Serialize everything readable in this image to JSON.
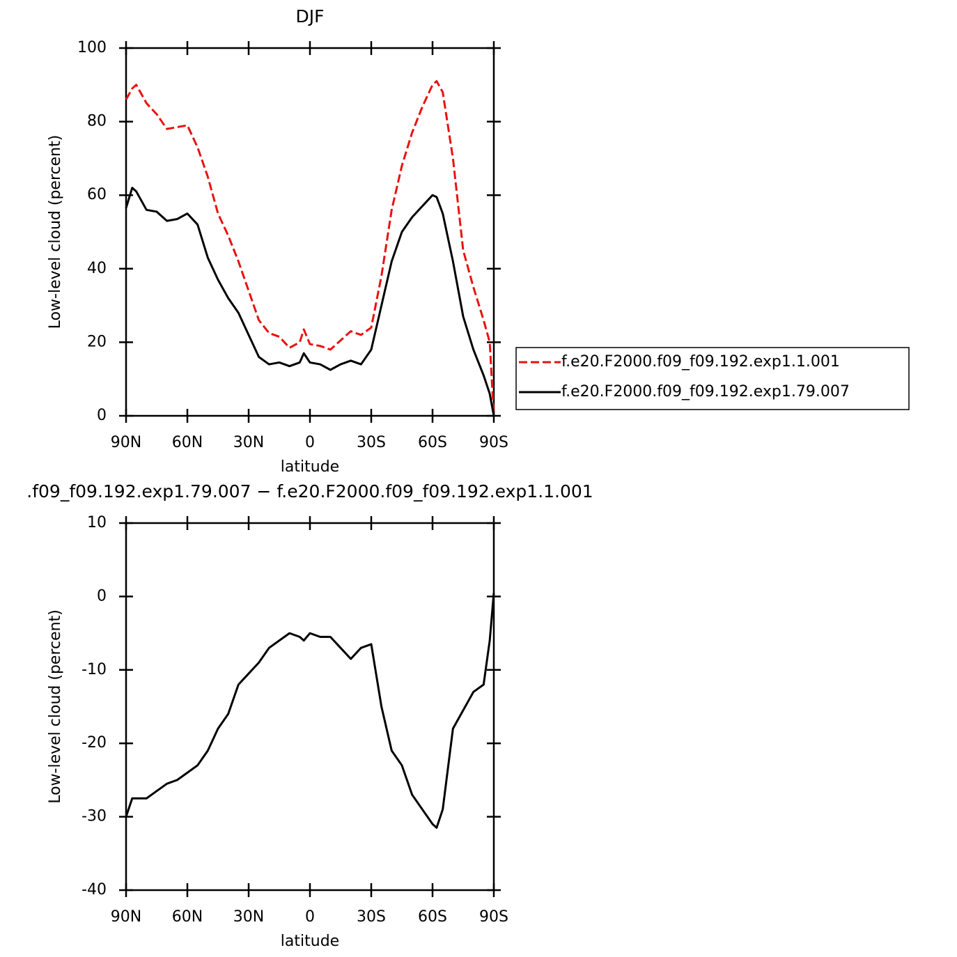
{
  "chart_data": [
    {
      "type": "line",
      "title": "DJF",
      "xlabel": "latitude",
      "ylabel": "Low-level cloud (percent)",
      "x": [
        90,
        87,
        85,
        80,
        75,
        70,
        65,
        60,
        55,
        50,
        45,
        40,
        35,
        30,
        25,
        20,
        15,
        10,
        5,
        3,
        0,
        -5,
        -10,
        -15,
        -20,
        -25,
        -30,
        -35,
        -40,
        -45,
        -50,
        -55,
        -60,
        -62,
        -65,
        -70,
        -75,
        -80,
        -85,
        -88,
        -90
      ],
      "series": [
        {
          "name": "f.e20.F2000.f09_f09.192.exp1.1.001",
          "color": "#e8110f",
          "line_style": "dashed",
          "values": [
            86,
            89,
            90,
            85,
            82,
            78,
            78.5,
            79,
            73,
            65,
            55,
            49,
            42,
            34,
            26,
            22.5,
            21.5,
            18.5,
            20,
            23.5,
            19.5,
            19,
            18,
            20.5,
            23,
            22,
            24,
            38,
            56,
            68,
            77,
            84,
            90,
            91,
            88,
            70,
            45,
            35,
            26,
            20,
            0
          ]
        },
        {
          "name": "f.e20.F2000.f09_f09.192.exp1.79.007",
          "color": "#000000",
          "line_style": "solid",
          "values": [
            56.5,
            62,
            61,
            56,
            55.5,
            53,
            53.5,
            55,
            52,
            43,
            37,
            32,
            28,
            22,
            16,
            14,
            14.5,
            13.5,
            14.5,
            17,
            14.5,
            14,
            12.5,
            14,
            15,
            14,
            18,
            30,
            42,
            50,
            54,
            57,
            60,
            59.5,
            55,
            42,
            27,
            18,
            11,
            6,
            0
          ]
        }
      ],
      "xlim": [
        90,
        -90
      ],
      "xticks": [
        {
          "value": 90,
          "label": "90N"
        },
        {
          "value": 60,
          "label": "60N"
        },
        {
          "value": 30,
          "label": "30N"
        },
        0,
        {
          "value": -30,
          "label": "30S"
        },
        {
          "value": -60,
          "label": "60S"
        },
        {
          "value": -90,
          "label": "90S"
        }
      ],
      "ylim": [
        0,
        100
      ],
      "yticks": [
        0,
        20,
        40,
        60,
        80,
        100
      ],
      "legend": "right"
    },
    {
      "type": "line",
      "title": ".f09_f09.192.exp1.79.007 − f.e20.F2000.f09_f09.192.exp1.1.001",
      "xlabel": "latitude",
      "ylabel": "Low-level cloud (percent)",
      "x": [
        90,
        87,
        85,
        80,
        75,
        70,
        65,
        60,
        55,
        50,
        45,
        40,
        35,
        30,
        25,
        20,
        15,
        10,
        5,
        3,
        0,
        -5,
        -10,
        -15,
        -20,
        -25,
        -30,
        -35,
        -40,
        -45,
        -50,
        -55,
        -60,
        -62,
        -65,
        -70,
        -75,
        -80,
        -85,
        -88,
        -90
      ],
      "series": [
        {
          "color": "#000000",
          "line_style": "solid",
          "values": [
            -30,
            -27.5,
            -27.5,
            -27.5,
            -26.5,
            -25.5,
            -25,
            -24,
            -23,
            -21,
            -18,
            -16,
            -12,
            -10.5,
            -9,
            -7,
            -6,
            -5,
            -5.5,
            -6,
            -5,
            -5.5,
            -5.5,
            -7,
            -8.5,
            -7,
            -6.5,
            -15,
            -21,
            -23,
            -27,
            -29,
            -31,
            -31.5,
            -29,
            -18,
            -15.5,
            -13,
            -12,
            -6,
            0.5
          ]
        }
      ],
      "xlim": [
        90,
        -90
      ],
      "xticks": [
        {
          "value": 90,
          "label": "90N"
        },
        {
          "value": 60,
          "label": "60N"
        },
        {
          "value": 30,
          "label": "30N"
        },
        0,
        {
          "value": -30,
          "label": "30S"
        },
        {
          "value": -60,
          "label": "60S"
        },
        {
          "value": -90,
          "label": "90S"
        }
      ],
      "ylim": [
        -40,
        10
      ],
      "yticks": [
        -40,
        -30,
        -20,
        -10,
        0,
        10
      ]
    }
  ]
}
